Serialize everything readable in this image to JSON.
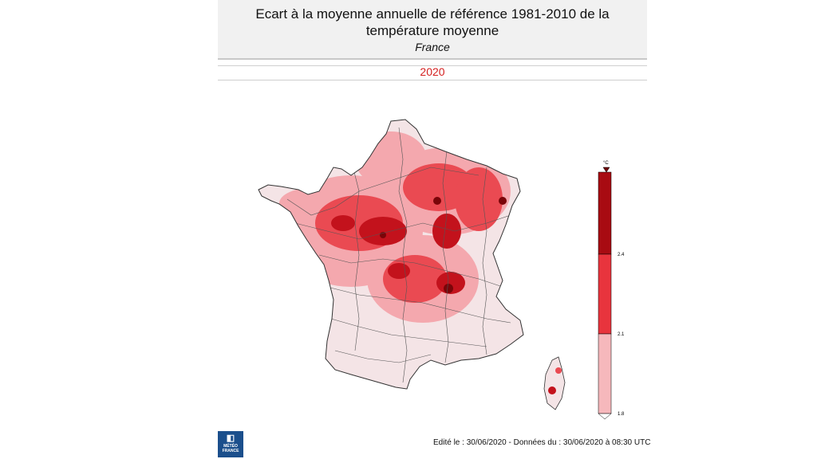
{
  "header": {
    "title": "Ecart à la moyenne annuelle de référence 1981-2010 de la température moyenne",
    "subtitle": "France"
  },
  "year": "2020",
  "legend": {
    "unit": "°C",
    "ticks": [
      "2.4",
      "2.1",
      "1.8"
    ],
    "colors": {
      "low": "#f6b8bc",
      "mid": "#e8343d",
      "high": "#a80b12",
      "top": "#6e0307"
    }
  },
  "footer": {
    "text": "Edité le : 30/06/2020 - Données du : 30/06/2020 à 08:30 UTC"
  },
  "logo": {
    "line1": "MÉTÉO",
    "line2": "FRANCE"
  },
  "map": {
    "region": "France",
    "colors": {
      "base": "#f4e4e6",
      "light": "#f4a8ae",
      "medium": "#ea4a52",
      "dark": "#c3121c",
      "darkest": "#7a0509",
      "border": "#333333"
    }
  }
}
